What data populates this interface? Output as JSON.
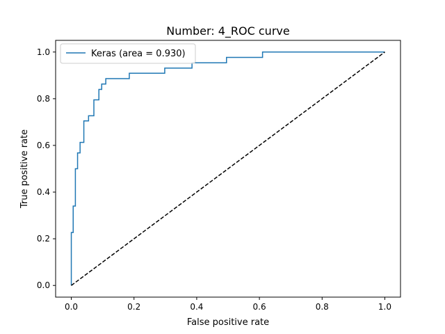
{
  "chart_data": {
    "type": "line",
    "title": "Number:  4_ROC curve",
    "xlabel": "False positive rate",
    "ylabel": "True positive rate",
    "xlim": [
      -0.05,
      1.05
    ],
    "ylim": [
      -0.05,
      1.05
    ],
    "xticks": [
      "0.0",
      "0.2",
      "0.4",
      "0.6",
      "0.8",
      "1.0"
    ],
    "yticks": [
      "0.0",
      "0.2",
      "0.4",
      "0.6",
      "0.8",
      "1.0"
    ],
    "grid": false,
    "legend_position": "top-left",
    "series": [
      {
        "name": "Keras (area = 0.930)",
        "color": "#1f77b4",
        "style": "step",
        "x": [
          0.0,
          0.0,
          0.006,
          0.006,
          0.013,
          0.013,
          0.02,
          0.02,
          0.028,
          0.028,
          0.04,
          0.04,
          0.055,
          0.055,
          0.072,
          0.072,
          0.088,
          0.088,
          0.097,
          0.097,
          0.11,
          0.11,
          0.185,
          0.185,
          0.298,
          0.298,
          0.385,
          0.385,
          0.495,
          0.495,
          0.61,
          0.61,
          1.0
        ],
        "y": [
          0.0,
          0.227,
          0.227,
          0.34,
          0.34,
          0.5,
          0.5,
          0.568,
          0.568,
          0.613,
          0.613,
          0.705,
          0.705,
          0.727,
          0.727,
          0.795,
          0.795,
          0.84,
          0.84,
          0.863,
          0.863,
          0.886,
          0.886,
          0.909,
          0.909,
          0.931,
          0.931,
          0.954,
          0.954,
          0.977,
          0.977,
          1.0,
          1.0
        ]
      },
      {
        "name": "",
        "color": "#000000",
        "style": "dashed",
        "x": [
          0.0,
          1.0
        ],
        "y": [
          0.0,
          1.0
        ]
      }
    ]
  }
}
